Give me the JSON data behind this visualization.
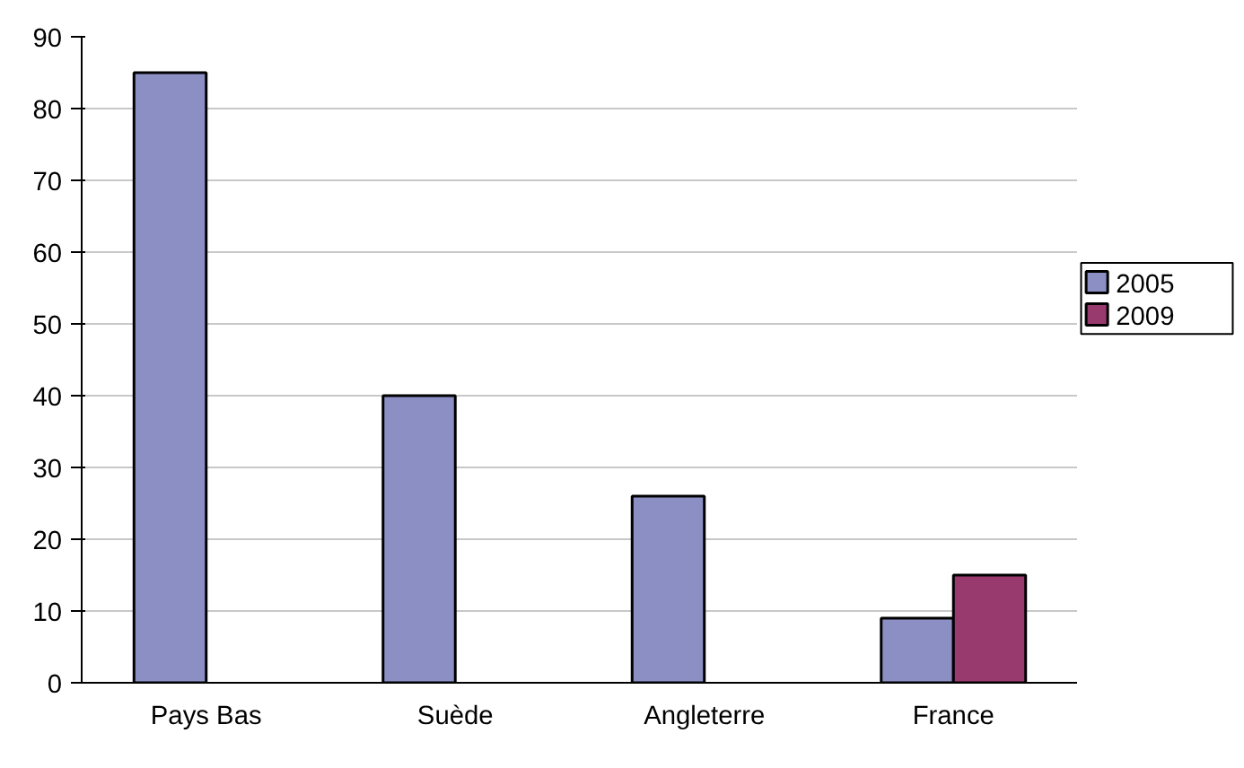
{
  "chart_data": {
    "type": "bar",
    "categories": [
      "Pays Bas",
      "Suède",
      "Angleterre",
      "France"
    ],
    "series": [
      {
        "name": "2005",
        "color": "#8b8fc4",
        "values": [
          85,
          40,
          26,
          9
        ]
      },
      {
        "name": "2009",
        "color": "#993a6e",
        "values": [
          null,
          null,
          null,
          15
        ]
      }
    ],
    "ylim": [
      0,
      90
    ],
    "yticks": [
      0,
      10,
      20,
      30,
      40,
      50,
      60,
      70,
      80,
      90
    ],
    "grid": "y",
    "legend": "right"
  }
}
